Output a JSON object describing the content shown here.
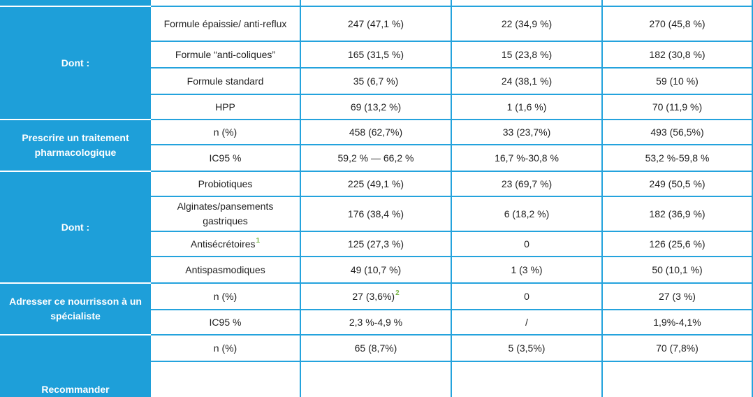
{
  "sections": [
    {
      "header": "",
      "rows": [
        {
          "label": "",
          "c1": "",
          "c2": "",
          "c3": ""
        }
      ]
    },
    {
      "header": "Dont :",
      "rows": [
        {
          "label": "Formule épaissie/ anti-reflux",
          "c1": "247 (47,1 %)",
          "c2": "22 (34,9 %)",
          "c3": "270 (45,8 %)"
        },
        {
          "label": "Formule “anti-coliques”",
          "c1": "165 (31,5 %)",
          "c2": "15 (23,8 %)",
          "c3": "182 (30,8 %)"
        },
        {
          "label": "Formule standard",
          "c1": "35 (6,7 %)",
          "c2": "24 (38,1 %)",
          "c3": "59 (10 %)"
        },
        {
          "label": "HPP",
          "c1": "69 (13,2 %)",
          "c2": "1 (1,6 %)",
          "c3": "70 (11,9 %)"
        }
      ]
    },
    {
      "header": "Prescrire un traitement pharmacologique",
      "rows": [
        {
          "label": "n (%)",
          "c1": "458 (62,7%)",
          "c2": "33 (23,7%)",
          "c3": "493 (56,5%)"
        },
        {
          "label": "IC95 %",
          "c1": "59,2 % — 66,2 %",
          "c2": "16,7 %-30,8 %",
          "c3": "53,2 %-59,8 %"
        }
      ]
    },
    {
      "header": "Dont :",
      "rows": [
        {
          "label": "Probiotiques",
          "c1": "225 (49,1 %)",
          "c2": "23 (69,7 %)",
          "c3": "249 (50,5 %)"
        },
        {
          "label": "Alginates/pansements gastriques",
          "c1": "176 (38,4 %)",
          "c2": "6 (18,2 %)",
          "c3": "182 (36,9 %)"
        },
        {
          "label": "Antisécrétoires",
          "label_sup": "1",
          "c1": "125 (27,3 %)",
          "c2": "0",
          "c3": "126 (25,6 %)"
        },
        {
          "label": "Antispasmodiques",
          "c1": "49 (10,7 %)",
          "c2": "1 (3 %)",
          "c3": "50 (10,1 %)"
        }
      ]
    },
    {
      "header": "Adresser ce nourrisson à un spécialiste",
      "rows": [
        {
          "label": "n (%)",
          "c1": "27 (3,6%)",
          "c1_sup": "2",
          "c2": "0",
          "c3": "27 (3 %)"
        },
        {
          "label": "IC95 %",
          "c1": "2,3 %-4,9 %",
          "c2": "/",
          "c3": "1,9%-4,1%"
        }
      ]
    },
    {
      "header": "Recommander",
      "rows": [
        {
          "label": "n (%)",
          "c1": "65 (8,7%)",
          "c2": "5 (3,5%)",
          "c3": "70 (7,8%)"
        }
      ]
    }
  ]
}
